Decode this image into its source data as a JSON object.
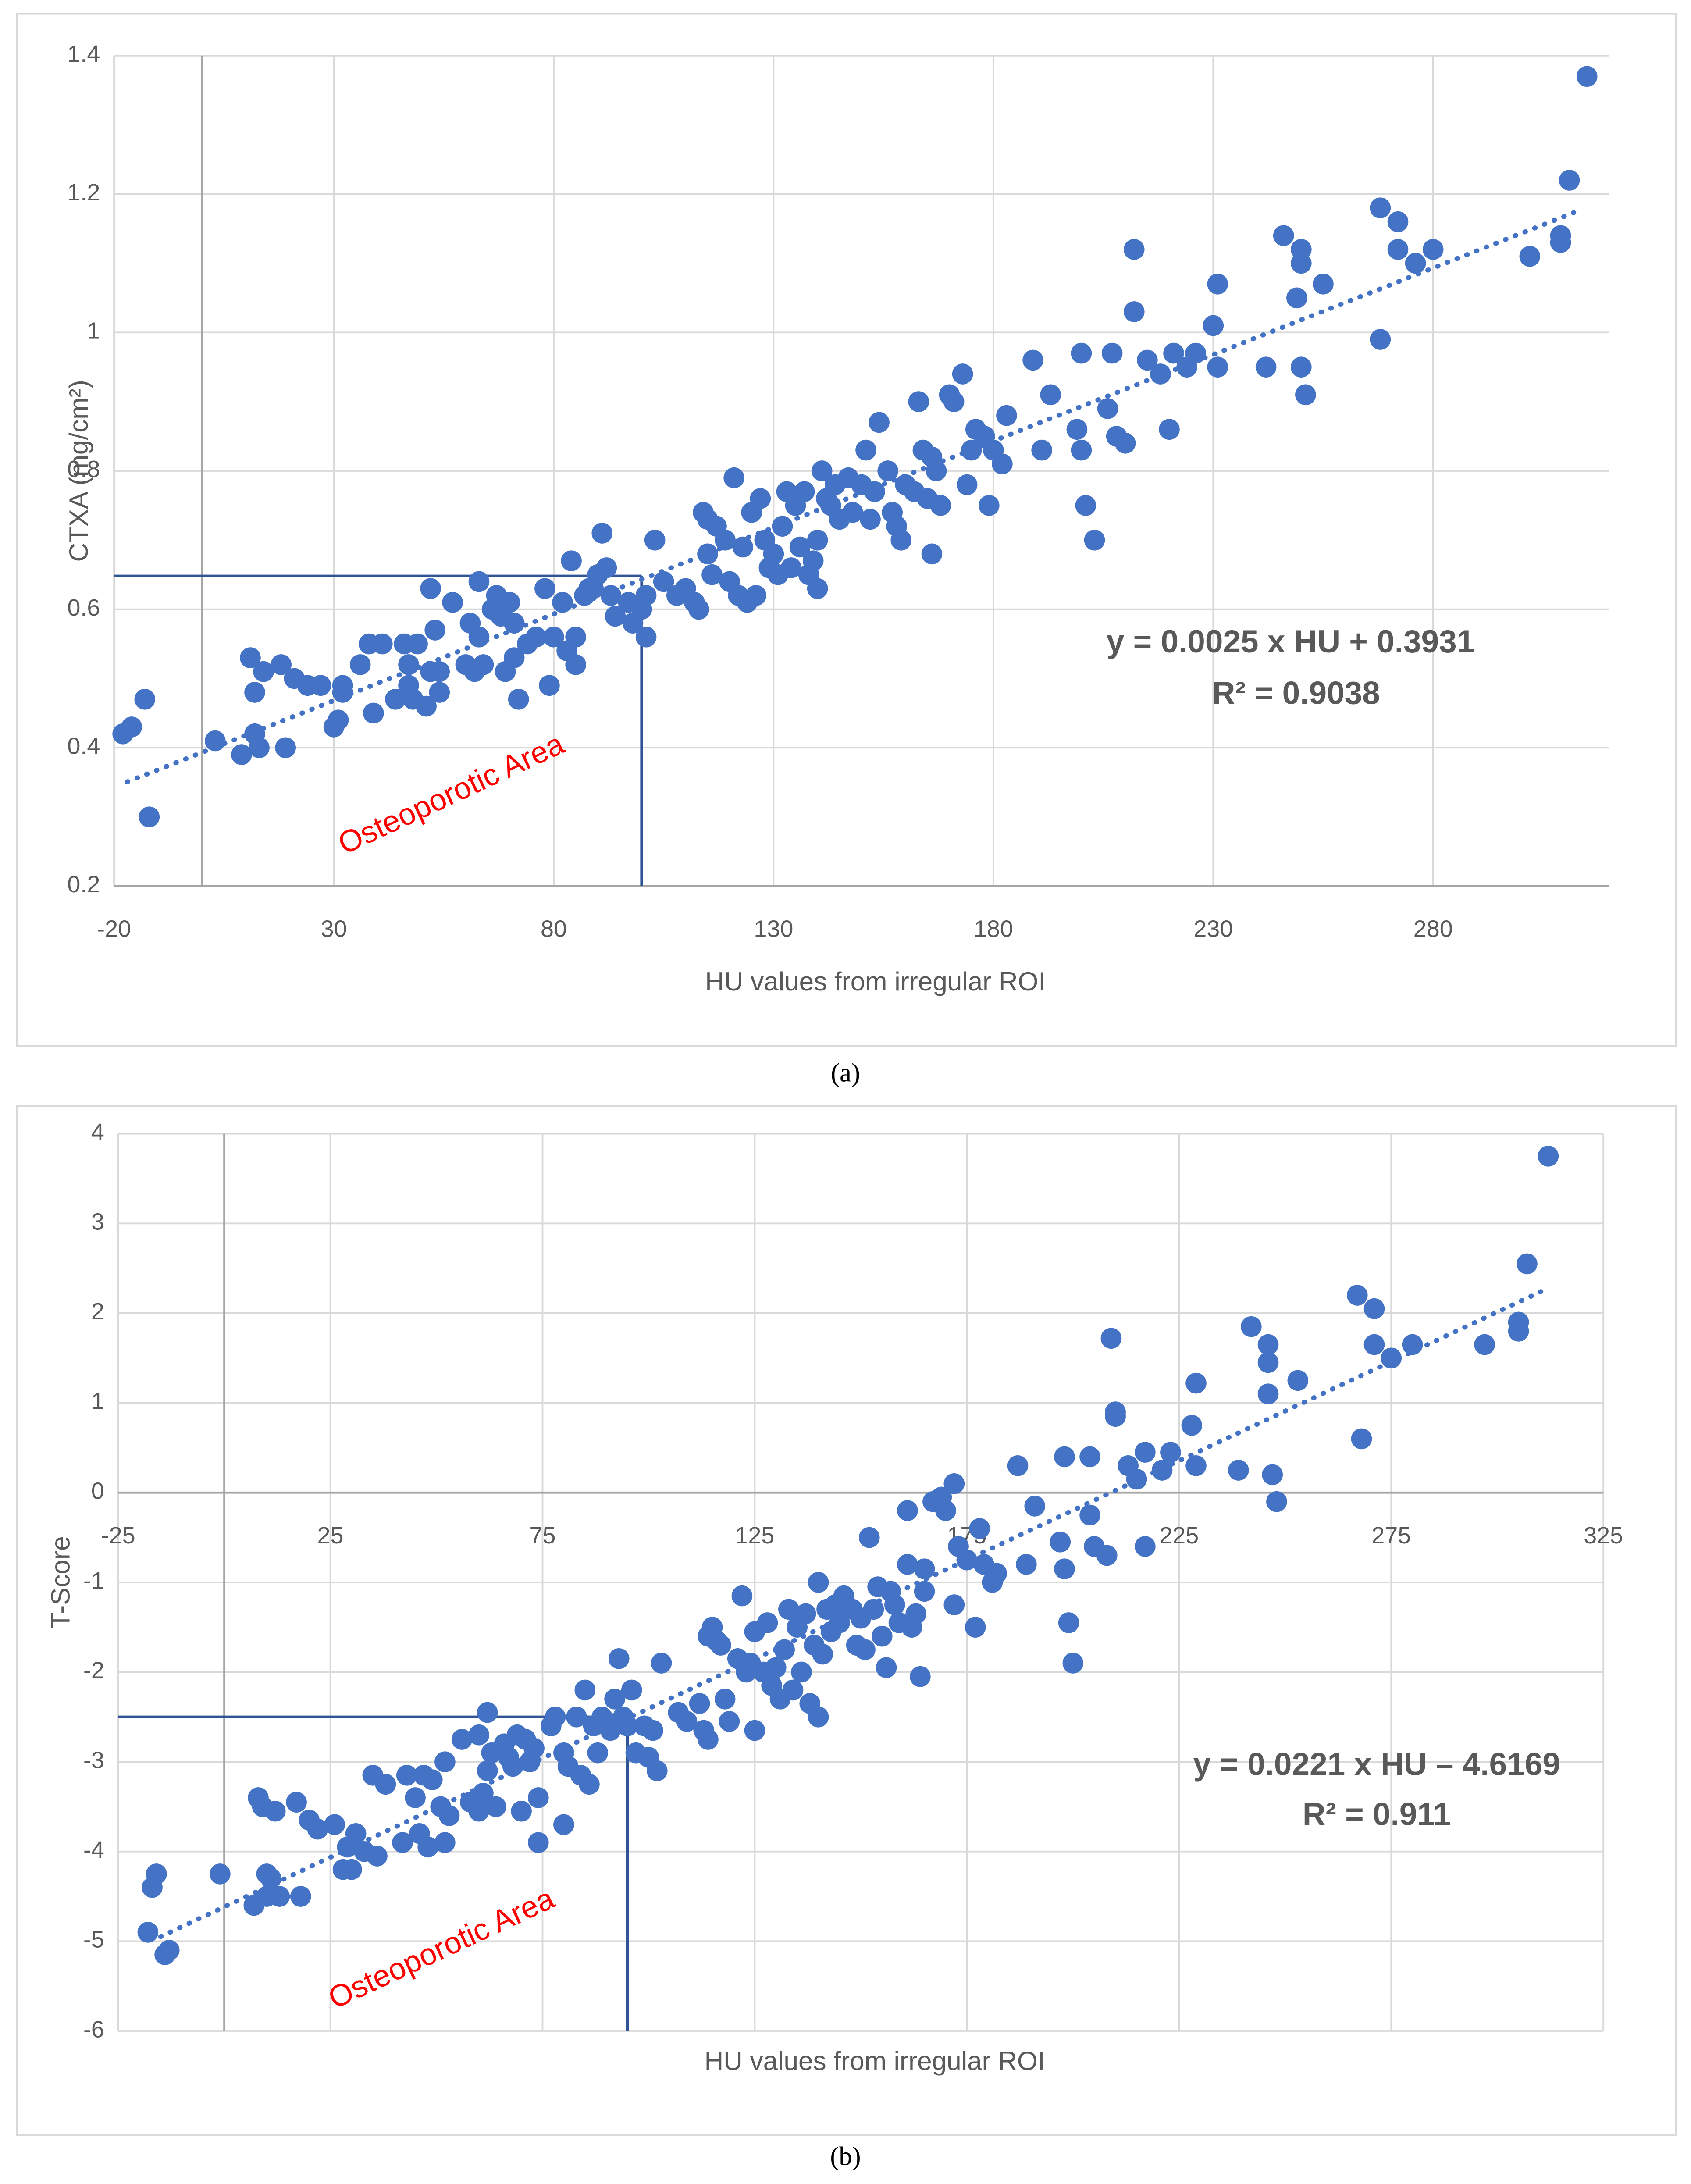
{
  "chart_data": [
    {
      "type": "scatter",
      "caption": "(a)",
      "xlabel": "HU values from irregular ROI",
      "ylabel": "CTXA (mg/cm²)",
      "color": "#4472c4",
      "grid": true,
      "x_axis_position": "bottom",
      "xlim": [
        -20,
        320
      ],
      "ylim": [
        0.2,
        1.4
      ],
      "xticks": [
        -20,
        30,
        80,
        130,
        180,
        230,
        280
      ],
      "yticks": [
        0.2,
        0.4,
        0.6,
        0.8,
        1,
        1.2,
        1.4
      ],
      "trendline": {
        "slope": 0.0025,
        "intercept": 0.3931,
        "x": [
          -17,
          312
        ]
      },
      "reference": {
        "x": 100,
        "y": 0.648
      },
      "annotations": [
        "y = 0.0025 x HU + 0.3931",
        "R² = 0.9038",
        "Osteoporotic Area"
      ],
      "x": [
        -18,
        -16,
        -13,
        -12,
        3,
        9,
        11,
        12,
        12,
        13,
        14,
        18,
        19,
        21,
        24,
        27,
        30,
        31,
        32,
        32,
        36,
        38,
        39,
        41,
        44,
        46,
        47,
        47,
        48,
        49,
        51,
        52,
        52,
        53,
        54,
        54,
        57,
        60,
        61,
        62,
        63,
        63,
        64,
        66,
        67,
        68,
        69,
        70,
        71,
        71,
        72,
        74,
        76,
        78,
        79,
        80,
        82,
        83,
        84,
        85,
        85,
        87,
        88,
        89,
        90,
        91,
        92,
        93,
        94,
        97,
        98,
        100,
        101,
        101,
        103,
        105,
        108,
        110,
        112,
        113,
        114,
        115,
        115,
        116,
        117,
        119,
        120,
        121,
        122,
        123,
        124,
        125,
        126,
        127,
        128,
        129,
        130,
        131,
        132,
        133,
        134,
        135,
        136,
        137,
        138,
        139,
        140,
        140,
        141,
        142,
        143,
        144,
        145,
        147,
        148,
        150,
        151,
        152,
        153,
        154,
        156,
        157,
        158,
        159,
        160,
        162,
        163,
        164,
        165,
        166,
        166,
        167,
        168,
        170,
        171,
        173,
        174,
        175,
        176,
        178,
        179,
        180,
        182,
        183,
        189,
        191,
        193,
        199,
        200,
        200,
        201,
        203,
        206,
        207,
        208,
        210,
        212,
        212,
        215,
        218,
        220,
        221,
        224,
        226,
        230,
        231,
        231,
        242,
        246,
        249,
        250,
        250,
        250,
        251,
        255,
        268,
        268,
        272,
        272,
        276,
        280,
        302,
        309,
        309,
        311,
        315
      ],
      "y": [
        0.42,
        0.43,
        0.47,
        0.3,
        0.41,
        0.39,
        0.53,
        0.42,
        0.48,
        0.4,
        0.51,
        0.52,
        0.4,
        0.5,
        0.49,
        0.49,
        0.43,
        0.44,
        0.48,
        0.49,
        0.52,
        0.55,
        0.45,
        0.55,
        0.47,
        0.55,
        0.52,
        0.49,
        0.47,
        0.55,
        0.46,
        0.51,
        0.63,
        0.57,
        0.48,
        0.51,
        0.61,
        0.52,
        0.58,
        0.51,
        0.64,
        0.56,
        0.52,
        0.6,
        0.62,
        0.59,
        0.51,
        0.61,
        0.53,
        0.58,
        0.47,
        0.55,
        0.56,
        0.63,
        0.49,
        0.56,
        0.61,
        0.54,
        0.67,
        0.52,
        0.56,
        0.62,
        0.63,
        0.63,
        0.65,
        0.71,
        0.66,
        0.62,
        0.59,
        0.61,
        0.58,
        0.6,
        0.56,
        0.62,
        0.7,
        0.64,
        0.62,
        0.63,
        0.61,
        0.6,
        0.74,
        0.68,
        0.73,
        0.65,
        0.72,
        0.7,
        0.64,
        0.79,
        0.62,
        0.69,
        0.61,
        0.74,
        0.62,
        0.76,
        0.7,
        0.66,
        0.68,
        0.65,
        0.72,
        0.77,
        0.66,
        0.75,
        0.69,
        0.77,
        0.65,
        0.67,
        0.63,
        0.7,
        0.8,
        0.76,
        0.75,
        0.78,
        0.73,
        0.79,
        0.74,
        0.78,
        0.83,
        0.73,
        0.77,
        0.87,
        0.8,
        0.74,
        0.72,
        0.7,
        0.78,
        0.77,
        0.9,
        0.83,
        0.76,
        0.68,
        0.82,
        0.8,
        0.75,
        0.91,
        0.9,
        0.94,
        0.78,
        0.83,
        0.86,
        0.85,
        0.75,
        0.83,
        0.81,
        0.88,
        0.96,
        0.83,
        0.91,
        0.86,
        0.97,
        0.83,
        0.75,
        0.7,
        0.89,
        0.97,
        0.85,
        0.84,
        1.12,
        1.03,
        0.96,
        0.94,
        0.86,
        0.97,
        0.95,
        0.97,
        1.01,
        1.07,
        0.95,
        0.95,
        1.14,
        1.05,
        1.12,
        1.1,
        0.95,
        0.91,
        1.07,
        1.18,
        0.99,
        1.16,
        1.12,
        1.1,
        1.12,
        1.11,
        1.13,
        1.14,
        1.22,
        1.37
      ]
    },
    {
      "type": "scatter",
      "caption": "(b)",
      "xlabel": "HU values from irregular ROI",
      "ylabel": "T-Score",
      "color": "#4472c4",
      "grid": true,
      "x_axis_position": "zero",
      "xlim": [
        -25,
        325
      ],
      "ylim": [
        -6,
        4
      ],
      "xticks": [
        -25,
        25,
        75,
        125,
        175,
        225,
        275,
        325
      ],
      "yticks": [
        -6,
        -5,
        -4,
        -3,
        -2,
        -1,
        0,
        1,
        2,
        3,
        4
      ],
      "trendline": {
        "slope": 0.0221,
        "intercept": -4.6169,
        "x": [
          -15,
          312
        ]
      },
      "reference": {
        "x": 95,
        "y": -2.5
      },
      "annotations": [
        "y = 0.0221 x HU – 4.6169",
        "R² = 0.911",
        "Osteoporotic Area"
      ],
      "x": [
        -18,
        -17,
        -16,
        -14,
        -13,
        -1,
        7,
        8,
        9,
        10,
        10,
        11,
        12,
        13,
        17,
        18,
        20,
        22,
        26,
        28,
        29,
        30,
        31,
        33,
        35,
        36,
        38,
        42,
        43,
        45,
        46,
        47,
        48,
        49,
        51,
        52,
        52,
        53,
        56,
        58,
        60,
        60,
        61,
        62,
        62,
        63,
        64,
        66,
        67,
        68,
        69,
        70,
        71,
        72,
        73,
        74,
        74,
        77,
        78,
        80,
        80,
        81,
        83,
        84,
        85,
        86,
        87,
        88,
        89,
        90,
        91,
        92,
        93,
        94,
        95,
        96,
        97,
        99,
        100,
        101,
        102,
        103,
        107,
        109,
        112,
        113,
        114,
        114,
        115,
        116,
        117,
        118,
        119,
        121,
        122,
        123,
        124,
        125,
        125,
        127,
        128,
        129,
        130,
        131,
        132,
        133,
        134,
        135,
        136,
        137,
        138,
        139,
        140,
        140,
        141,
        142,
        143,
        144,
        145,
        146,
        148,
        149,
        150,
        151,
        152,
        153,
        154,
        155,
        156,
        157,
        158,
        159,
        161,
        161,
        162,
        163,
        164,
        165,
        165,
        167,
        169,
        170,
        172,
        172,
        173,
        175,
        177,
        178,
        179,
        181,
        182,
        187,
        189,
        191,
        197,
        198,
        198,
        199,
        200,
        204,
        204,
        205,
        208,
        209,
        210,
        210,
        213,
        215,
        217,
        217,
        221,
        223,
        228,
        229,
        229,
        239,
        242,
        246,
        246,
        246,
        247,
        248,
        253,
        267,
        268,
        271,
        271,
        275,
        280,
        297,
        305,
        305,
        307,
        312
      ],
      "y": [
        -4.9,
        -4.4,
        -4.25,
        -5.15,
        -5.1,
        -4.25,
        -4.6,
        -3.4,
        -3.5,
        -4.5,
        -4.25,
        -4.3,
        -3.55,
        -4.5,
        -3.45,
        -4.5,
        -3.65,
        -3.75,
        -3.7,
        -4.2,
        -3.95,
        -4.2,
        -3.8,
        -4.0,
        -3.15,
        -4.05,
        -3.25,
        -3.9,
        -3.15,
        -3.4,
        -3.8,
        -3.15,
        -3.95,
        -3.2,
        -3.5,
        -3.0,
        -3.9,
        -3.6,
        -2.75,
        -3.45,
        -2.7,
        -3.55,
        -3.35,
        -2.45,
        -3.1,
        -2.9,
        -3.5,
        -2.8,
        -2.95,
        -3.05,
        -2.7,
        -3.55,
        -2.75,
        -3.0,
        -2.85,
        -3.4,
        -3.9,
        -2.6,
        -2.5,
        -3.7,
        -2.9,
        -3.05,
        -2.5,
        -3.15,
        -2.2,
        -3.25,
        -2.6,
        -2.9,
        -2.5,
        -2.55,
        -2.65,
        -2.3,
        -1.85,
        -2.5,
        -2.6,
        -2.2,
        -2.9,
        -2.6,
        -2.95,
        -2.65,
        -3.1,
        -1.9,
        -2.45,
        -2.55,
        -2.35,
        -2.65,
        -2.75,
        -1.6,
        -1.5,
        -1.65,
        -1.7,
        -2.3,
        -2.55,
        -1.85,
        -1.15,
        -2.0,
        -1.9,
        -2.65,
        -1.55,
        -2.0,
        -1.45,
        -2.15,
        -1.95,
        -2.3,
        -1.75,
        -1.3,
        -2.2,
        -1.5,
        -2.0,
        -1.35,
        -2.35,
        -1.7,
        -2.5,
        -1.0,
        -1.8,
        -1.3,
        -1.55,
        -1.25,
        -1.45,
        -1.15,
        -1.3,
        -1.7,
        -1.4,
        -1.75,
        -0.5,
        -1.3,
        -1.05,
        -1.6,
        -1.95,
        -1.1,
        -1.25,
        -1.45,
        -0.8,
        -0.2,
        -1.5,
        -1.35,
        -2.05,
        -1.1,
        -0.85,
        -0.1,
        -0.05,
        -0.2,
        0.1,
        -1.25,
        -0.6,
        -0.75,
        -1.5,
        -0.4,
        -0.8,
        -1.0,
        -0.9,
        0.3,
        -0.8,
        -0.15,
        -0.55,
        -0.85,
        0.4,
        -1.45,
        -1.9,
        0.4,
        -0.25,
        -0.6,
        -0.7,
        1.72,
        0.85,
        0.9,
        0.3,
        0.15,
        0.45,
        -0.6,
        0.25,
        0.45,
        0.75,
        1.22,
        0.3,
        0.25,
        1.85,
        1.1,
        1.45,
        1.65,
        0.2,
        -0.1,
        1.25,
        2.2,
        0.6,
        2.05,
        1.65,
        1.5,
        1.65,
        1.65,
        1.8,
        1.9,
        2.55,
        3.75
      ]
    }
  ]
}
